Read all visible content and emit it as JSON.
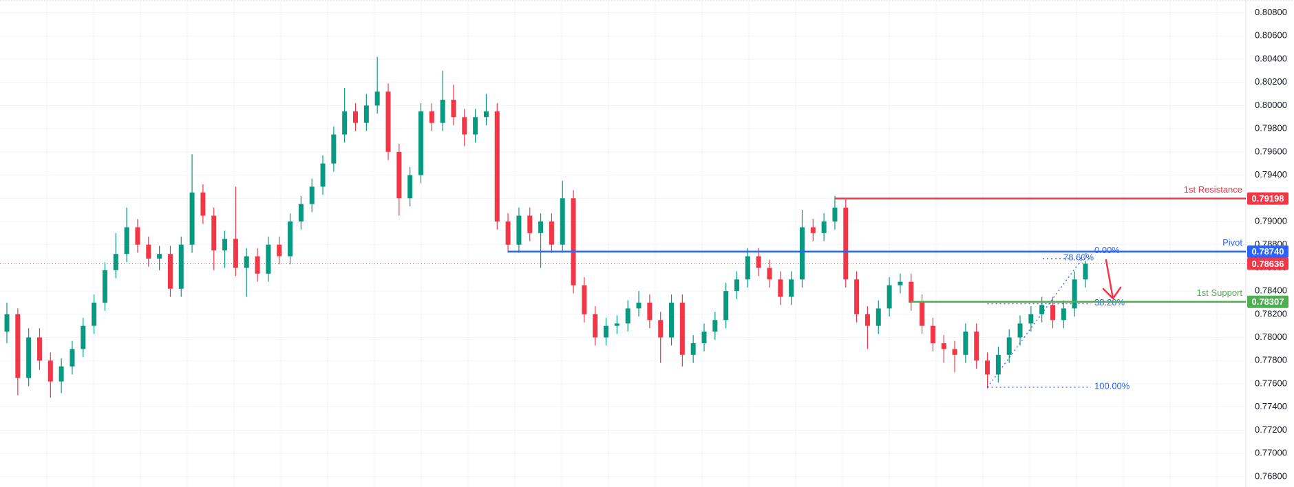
{
  "chart_data": {
    "type": "candlestick",
    "up_color": "#089981",
    "down_color": "#f23645",
    "ylim": [
      0.7671,
      0.8091
    ],
    "yticks": [
      {
        "value": 0.808,
        "label": "0.80800"
      },
      {
        "value": 0.806,
        "label": "0.80600"
      },
      {
        "value": 0.804,
        "label": "0.80400"
      },
      {
        "value": 0.802,
        "label": "0.80200"
      },
      {
        "value": 0.8,
        "label": "0.80000"
      },
      {
        "value": 0.798,
        "label": "0.79800"
      },
      {
        "value": 0.796,
        "label": "0.79600"
      },
      {
        "value": 0.794,
        "label": "0.79400"
      },
      {
        "value": 0.792,
        "label": "0.79200"
      },
      {
        "value": 0.79,
        "label": "0.79000"
      },
      {
        "value": 0.788,
        "label": "0.78800"
      },
      {
        "value": 0.786,
        "label": "0.78600"
      },
      {
        "value": 0.784,
        "label": "0.78400"
      },
      {
        "value": 0.782,
        "label": "0.78200"
      },
      {
        "value": 0.78,
        "label": "0.78000"
      },
      {
        "value": 0.778,
        "label": "0.77800"
      },
      {
        "value": 0.776,
        "label": "0.77600"
      },
      {
        "value": 0.774,
        "label": "0.77400"
      },
      {
        "value": 0.772,
        "label": "0.77200"
      },
      {
        "value": 0.77,
        "label": "0.77000"
      },
      {
        "value": 0.768,
        "label": "0.76800"
      }
    ],
    "grid": true,
    "open": [
      0.7805,
      0.782,
      0.7765,
      0.78,
      0.778,
      0.7762,
      0.7775,
      0.779,
      0.781,
      0.783,
      0.7858,
      0.7872,
      0.7895,
      0.788,
      0.7868,
      0.7872,
      0.7842,
      0.788,
      0.7925,
      0.7905,
      0.7875,
      0.7885,
      0.786,
      0.787,
      0.7855,
      0.788,
      0.787,
      0.79,
      0.7915,
      0.793,
      0.795,
      0.7975,
      0.7995,
      0.7985,
      0.8,
      0.8012,
      0.796,
      0.792,
      0.794,
      0.7995,
      0.7985,
      0.8005,
      0.799,
      0.7975,
      0.799,
      0.7995,
      0.79,
      0.788,
      0.7905,
      0.789,
      0.79,
      0.788,
      0.792,
      0.7845,
      0.782,
      0.78,
      0.781,
      0.7812,
      0.7825,
      0.783,
      0.7815,
      0.78,
      0.783,
      0.7785,
      0.7795,
      0.7805,
      0.7815,
      0.784,
      0.785,
      0.787,
      0.786,
      0.785,
      0.7835,
      0.785,
      0.7895,
      0.789,
      0.79,
      0.7912,
      0.785,
      0.782,
      0.781,
      0.7825,
      0.7845,
      0.7848,
      0.783,
      0.781,
      0.7795,
      0.779,
      0.7785,
      0.7805,
      0.778,
      0.7768,
      0.7785,
      0.78,
      0.7812,
      0.782,
      0.7828,
      0.7815,
      0.7825,
      0.785
    ],
    "high": [
      0.783,
      0.7825,
      0.7808,
      0.7808,
      0.7787,
      0.7782,
      0.7797,
      0.7817,
      0.7837,
      0.7865,
      0.789,
      0.7912,
      0.7902,
      0.7887,
      0.7879,
      0.7879,
      0.7887,
      0.7958,
      0.7932,
      0.7912,
      0.7892,
      0.793,
      0.7877,
      0.7877,
      0.7887,
      0.7887,
      0.7907,
      0.7922,
      0.7937,
      0.7957,
      0.7982,
      0.8015,
      0.8002,
      0.801,
      0.8042,
      0.8019,
      0.7967,
      0.7947,
      0.8002,
      0.8002,
      0.803,
      0.8018,
      0.7997,
      0.7997,
      0.801,
      0.8002,
      0.7907,
      0.7912,
      0.7912,
      0.7907,
      0.7907,
      0.7935,
      0.7927,
      0.7852,
      0.7827,
      0.7817,
      0.7819,
      0.7832,
      0.784,
      0.7837,
      0.7822,
      0.7837,
      0.7837,
      0.7802,
      0.7812,
      0.7822,
      0.7847,
      0.7857,
      0.7877,
      0.7877,
      0.7867,
      0.7857,
      0.7857,
      0.791,
      0.7902,
      0.7907,
      0.7922,
      0.7919,
      0.7857,
      0.7827,
      0.7832,
      0.7852,
      0.7855,
      0.7855,
      0.7837,
      0.7817,
      0.7802,
      0.7797,
      0.7812,
      0.7812,
      0.7787,
      0.7792,
      0.7807,
      0.7819,
      0.7827,
      0.7835,
      0.7835,
      0.7832,
      0.7857,
      0.7866
    ],
    "low": [
      0.7795,
      0.775,
      0.7758,
      0.7772,
      0.7748,
      0.7752,
      0.7768,
      0.7783,
      0.7803,
      0.7823,
      0.7851,
      0.7865,
      0.7873,
      0.7861,
      0.7858,
      0.7835,
      0.7835,
      0.7873,
      0.7898,
      0.7858,
      0.786,
      0.7853,
      0.7835,
      0.7848,
      0.7848,
      0.7863,
      0.7863,
      0.7893,
      0.7908,
      0.7923,
      0.7943,
      0.7968,
      0.7978,
      0.7978,
      0.7993,
      0.7953,
      0.7905,
      0.7913,
      0.7933,
      0.7978,
      0.7978,
      0.7983,
      0.7965,
      0.7968,
      0.7983,
      0.7893,
      0.7873,
      0.7873,
      0.7883,
      0.786,
      0.7873,
      0.7873,
      0.7838,
      0.7813,
      0.7793,
      0.7793,
      0.7803,
      0.7805,
      0.7818,
      0.7808,
      0.7778,
      0.7793,
      0.7775,
      0.7778,
      0.7788,
      0.7798,
      0.7808,
      0.7833,
      0.7843,
      0.7853,
      0.7843,
      0.7828,
      0.7828,
      0.7843,
      0.7883,
      0.7883,
      0.7893,
      0.7843,
      0.7813,
      0.779,
      0.7803,
      0.7818,
      0.7838,
      0.7823,
      0.7803,
      0.7788,
      0.7778,
      0.777,
      0.7778,
      0.7773,
      0.7756,
      0.7761,
      0.7778,
      0.7793,
      0.7805,
      0.7813,
      0.7808,
      0.7808,
      0.7818,
      0.7843
    ],
    "close": [
      0.782,
      0.7765,
      0.78,
      0.778,
      0.7762,
      0.7775,
      0.779,
      0.781,
      0.783,
      0.7858,
      0.7872,
      0.7895,
      0.788,
      0.7868,
      0.7872,
      0.7842,
      0.788,
      0.7925,
      0.7905,
      0.7875,
      0.7885,
      0.786,
      0.787,
      0.7855,
      0.788,
      0.787,
      0.79,
      0.7915,
      0.793,
      0.795,
      0.7975,
      0.7995,
      0.7985,
      0.8,
      0.8012,
      0.796,
      0.792,
      0.794,
      0.7995,
      0.7985,
      0.8005,
      0.799,
      0.7975,
      0.799,
      0.7995,
      0.79,
      0.788,
      0.7905,
      0.789,
      0.79,
      0.788,
      0.792,
      0.7845,
      0.782,
      0.78,
      0.781,
      0.7812,
      0.7825,
      0.783,
      0.7815,
      0.78,
      0.783,
      0.7785,
      0.7795,
      0.7805,
      0.7815,
      0.784,
      0.785,
      0.787,
      0.786,
      0.785,
      0.7835,
      0.785,
      0.7895,
      0.789,
      0.79,
      0.7912,
      0.785,
      0.782,
      0.781,
      0.7825,
      0.7845,
      0.7848,
      0.783,
      0.781,
      0.7795,
      0.779,
      0.7785,
      0.7805,
      0.778,
      0.7768,
      0.7785,
      0.78,
      0.7812,
      0.782,
      0.7828,
      0.7815,
      0.7825,
      0.785,
      0.78636
    ],
    "current_price": 0.78636,
    "current_color": "#f23645",
    "levels": [
      {
        "name": "1st Resistance",
        "value": 0.79198,
        "color": "#f23645",
        "from": 76
      },
      {
        "name": "Pivot",
        "value": 0.7874,
        "label": "0.78740",
        "color": "#2962ff",
        "from": 46
      },
      {
        "name": "1st Support",
        "value": 0.78307,
        "color": "#4caf50",
        "from": 83
      }
    ],
    "fib_from": 90,
    "fib_color": "#2962ff",
    "fib": [
      {
        "price": 0.7874,
        "label": "0.00%"
      },
      {
        "price": 0.7868,
        "label": "78.60%"
      },
      {
        "price": 0.7829,
        "label": "38.20%"
      },
      {
        "price": 0.7757,
        "label": "100.00%"
      }
    ]
  }
}
